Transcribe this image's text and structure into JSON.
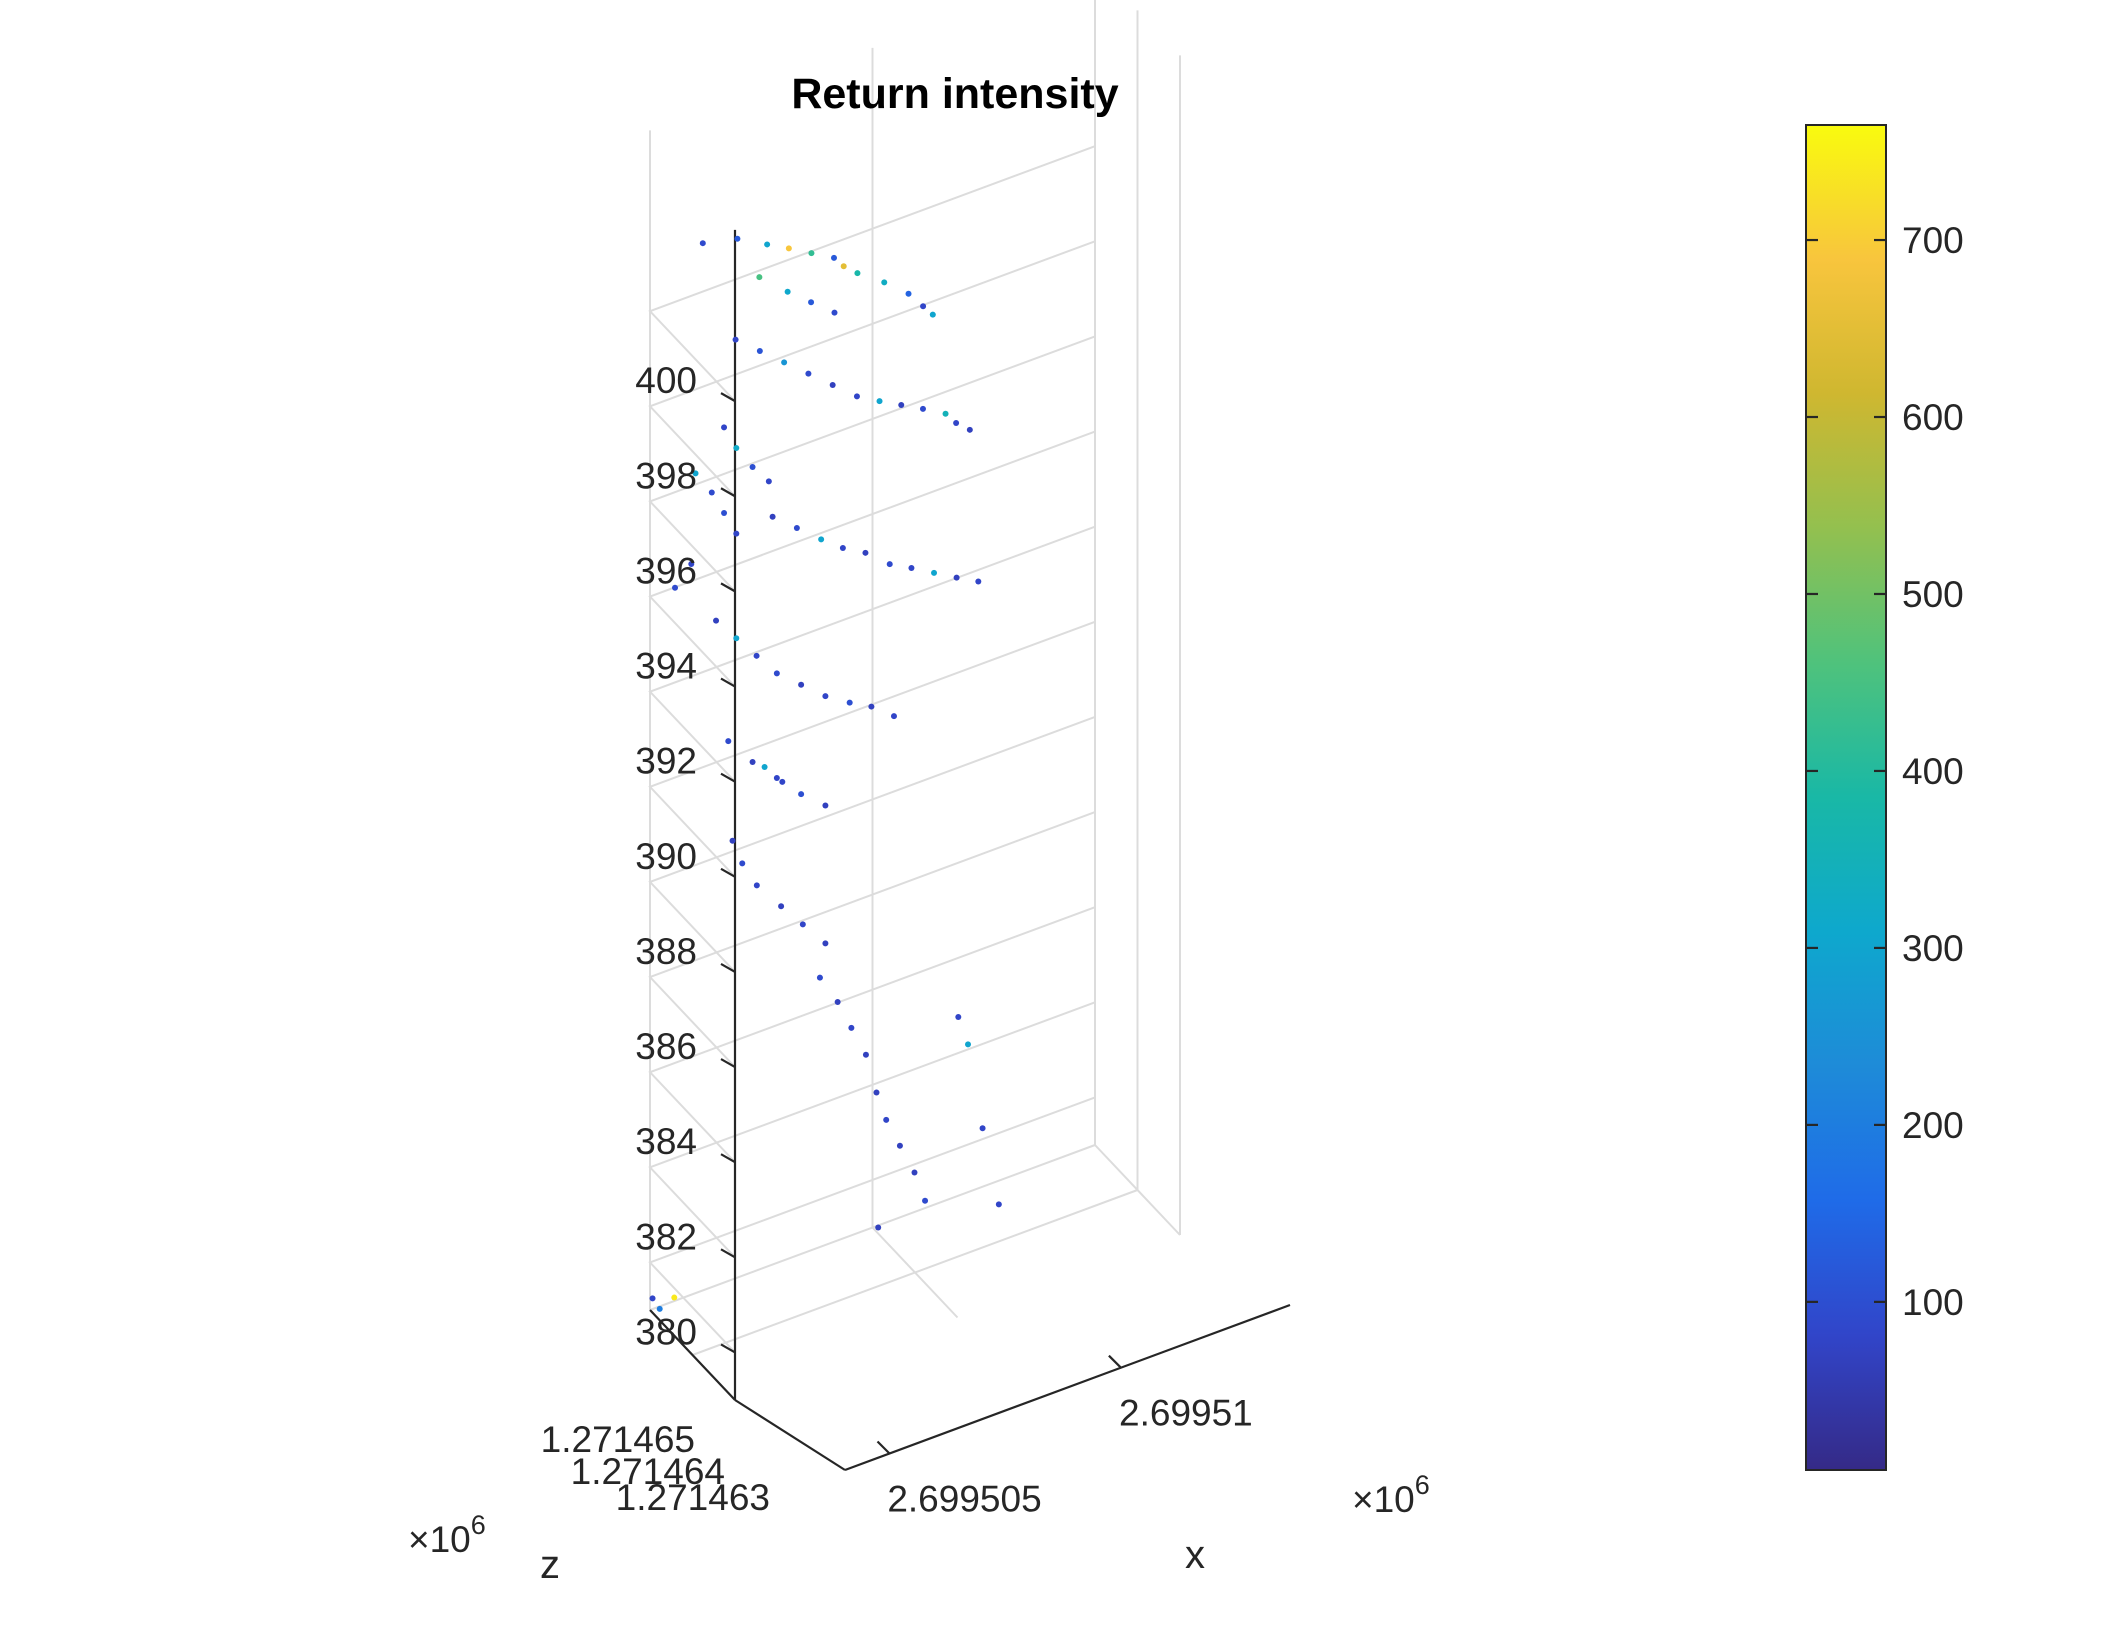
{
  "chart_data": {
    "type": "scatter",
    "title": "Return intensity",
    "xlabel": "x",
    "ylabel": "",
    "zlabel": "z",
    "x_ticks": [
      "2.699505",
      "2.69951"
    ],
    "y_ticks": [
      "1.271465",
      "1.271464",
      "1.271463"
    ],
    "z_ticks": [
      380,
      382,
      384,
      386,
      388,
      390,
      392,
      394,
      396,
      398,
      400
    ],
    "x_exponent": "10",
    "x_exponent_power": "6",
    "y_exponent": "10",
    "y_exponent_power": "6",
    "zlim": [
      379,
      402
    ],
    "grid": true,
    "colormap": "parula",
    "colorbar": {
      "location": "right",
      "range": [
        5,
        765
      ],
      "ticks": [
        100,
        200,
        300,
        400,
        500,
        600,
        700
      ]
    },
    "series": [
      {
        "values_description_omitted": false,
        "points": [
          [
            0.1,
            0.85,
            401.4,
            90
          ],
          [
            0.18,
            0.82,
            401.3,
            120
          ],
          [
            0.25,
            0.8,
            401.0,
            300
          ],
          [
            0.3,
            0.78,
            400.8,
            690
          ],
          [
            0.35,
            0.75,
            400.6,
            420
          ],
          [
            0.4,
            0.72,
            400.4,
            120
          ],
          [
            0.42,
            0.7,
            400.2,
            650
          ],
          [
            0.45,
            0.68,
            400.0,
            380
          ],
          [
            0.22,
            0.75,
            400.5,
            450
          ],
          [
            0.28,
            0.7,
            400.1,
            310
          ],
          [
            0.33,
            0.66,
            399.8,
            120
          ],
          [
            0.38,
            0.62,
            399.5,
            90
          ],
          [
            0.5,
            0.6,
            399.8,
            330
          ],
          [
            0.55,
            0.55,
            399.5,
            140
          ],
          [
            0.58,
            0.52,
            399.2,
            80
          ],
          [
            0.6,
            0.5,
            399.0,
            300
          ],
          [
            0.15,
            0.7,
            399.5,
            80
          ],
          [
            0.2,
            0.65,
            399.2,
            110
          ],
          [
            0.25,
            0.6,
            398.9,
            260
          ],
          [
            0.3,
            0.55,
            398.6,
            90
          ],
          [
            0.35,
            0.5,
            398.3,
            70
          ],
          [
            0.4,
            0.45,
            398.0,
            80
          ],
          [
            0.45,
            0.42,
            397.8,
            300
          ],
          [
            0.5,
            0.4,
            397.6,
            70
          ],
          [
            0.55,
            0.38,
            397.4,
            90
          ],
          [
            0.6,
            0.35,
            397.2,
            350
          ],
          [
            0.62,
            0.32,
            397.0,
            80
          ],
          [
            0.65,
            0.3,
            396.8,
            70
          ],
          [
            0.1,
            0.6,
            398.0,
            80
          ],
          [
            0.12,
            0.55,
            397.6,
            320
          ],
          [
            0.15,
            0.5,
            397.2,
            100
          ],
          [
            0.18,
            0.45,
            396.9,
            80
          ],
          [
            0.05,
            0.7,
            397.0,
            300
          ],
          [
            0.08,
            0.65,
            396.6,
            90
          ],
          [
            0.1,
            0.6,
            396.2,
            100
          ],
          [
            0.12,
            0.55,
            395.8,
            80
          ],
          [
            0.2,
            0.5,
            396.0,
            70
          ],
          [
            0.25,
            0.45,
            395.7,
            90
          ],
          [
            0.3,
            0.4,
            395.4,
            300
          ],
          [
            0.35,
            0.38,
            395.1,
            80
          ],
          [
            0.4,
            0.35,
            394.9,
            70
          ],
          [
            0.45,
            0.3,
            394.6,
            90
          ],
          [
            0.5,
            0.28,
            394.4,
            80
          ],
          [
            0.55,
            0.25,
            394.2,
            300
          ],
          [
            0.6,
            0.22,
            394.0,
            70
          ],
          [
            0.65,
            0.2,
            393.8,
            80
          ],
          [
            0.05,
            0.75,
            395.0,
            80
          ],
          [
            0.02,
            0.8,
            394.5,
            90
          ],
          [
            0.08,
            0.6,
            394.0,
            70
          ],
          [
            0.12,
            0.55,
            393.6,
            300
          ],
          [
            0.16,
            0.5,
            393.2,
            80
          ],
          [
            0.2,
            0.45,
            392.8,
            90
          ],
          [
            0.25,
            0.4,
            392.5,
            70
          ],
          [
            0.3,
            0.35,
            392.2,
            80
          ],
          [
            0.35,
            0.3,
            392.0,
            100
          ],
          [
            0.4,
            0.28,
            391.8,
            70
          ],
          [
            0.45,
            0.25,
            391.5,
            80
          ],
          [
            0.1,
            0.55,
            391.5,
            90
          ],
          [
            0.15,
            0.5,
            391.0,
            70
          ],
          [
            0.2,
            0.45,
            390.6,
            80
          ],
          [
            0.25,
            0.4,
            390.2,
            100
          ],
          [
            0.3,
            0.35,
            389.9,
            70
          ],
          [
            0.18,
            0.5,
            390.8,
            300
          ],
          [
            0.22,
            0.48,
            390.4,
            80
          ],
          [
            0.1,
            0.5,
            389.5,
            70
          ],
          [
            0.12,
            0.48,
            389.0,
            90
          ],
          [
            0.15,
            0.45,
            388.5,
            80
          ],
          [
            0.2,
            0.4,
            388.0,
            70
          ],
          [
            0.25,
            0.38,
            387.5,
            80
          ],
          [
            0.3,
            0.35,
            387.0,
            70
          ],
          [
            0.28,
            0.32,
            386.4,
            90
          ],
          [
            0.32,
            0.3,
            385.8,
            70
          ],
          [
            0.35,
            0.28,
            385.2,
            80
          ],
          [
            0.38,
            0.25,
            384.6,
            70
          ],
          [
            0.6,
            0.2,
            384.8,
            80
          ],
          [
            0.62,
            0.18,
            384.2,
            300
          ],
          [
            0.4,
            0.22,
            383.8,
            70
          ],
          [
            0.42,
            0.2,
            383.2,
            80
          ],
          [
            0.45,
            0.18,
            382.6,
            70
          ],
          [
            0.65,
            0.15,
            382.4,
            80
          ],
          [
            0.48,
            0.15,
            382.0,
            70
          ],
          [
            0.5,
            0.12,
            381.4,
            90
          ],
          [
            0.4,
            0.2,
            381.0,
            70
          ],
          [
            0.68,
            0.1,
            380.8,
            80
          ],
          [
            0.05,
            0.95,
            379.2,
            740
          ],
          [
            0.02,
            0.98,
            379.0,
            200
          ],
          [
            0.0,
            0.97,
            379.3,
            80
          ]
        ]
      }
    ]
  }
}
